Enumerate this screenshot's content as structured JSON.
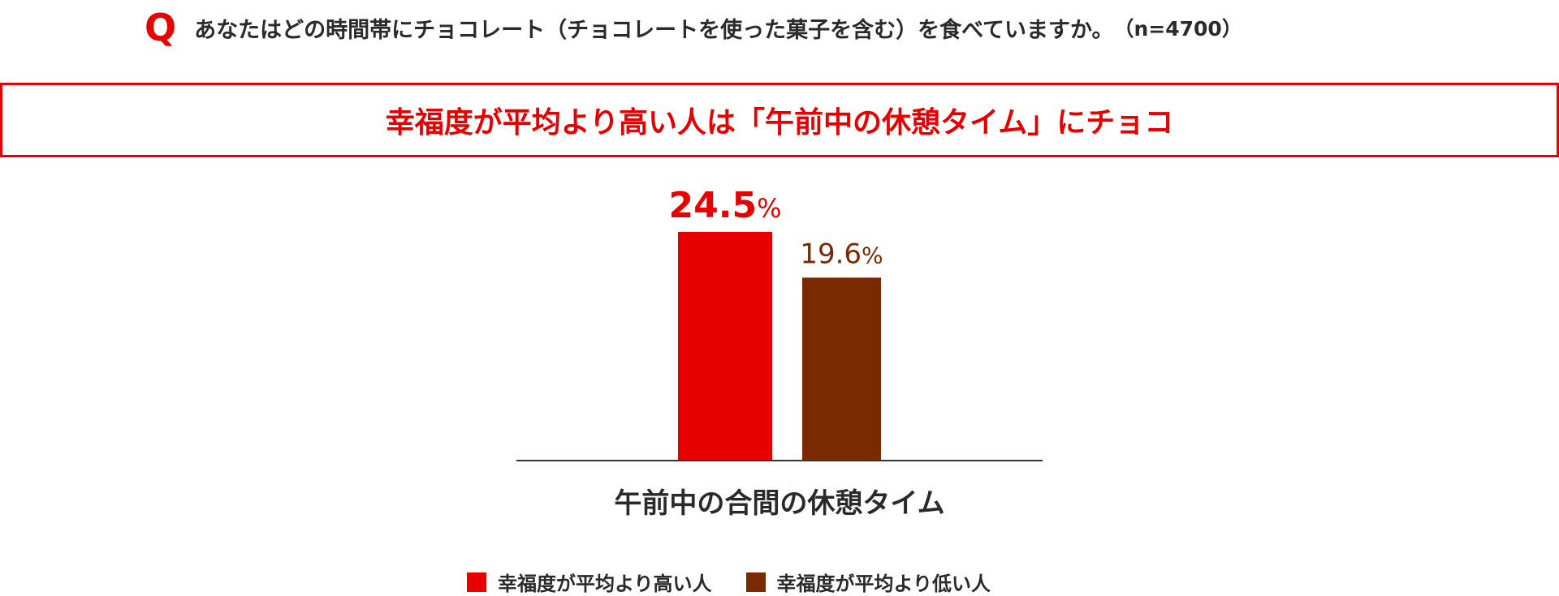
{
  "question": {
    "mark": "Q",
    "text": "あなたはどの時間帯にチョコレート（チョコレートを使った菓子を含む）を食べていますか。",
    "sample": "（n=4700）"
  },
  "headline": "幸福度が平均より高い人は「午前中の休憩タイム」にチョコ",
  "colors": {
    "accent": "#e60000",
    "brown": "#7a2a00",
    "axis": "#333333"
  },
  "chart_data": {
    "type": "bar",
    "categories": [
      "午前中の合間の休憩タイム"
    ],
    "series": [
      {
        "name": "幸福度が平均より高い人",
        "values": [
          24.5
        ],
        "color": "#e60000",
        "label": "24.5",
        "unit": "%"
      },
      {
        "name": "幸福度が平均より低い人",
        "values": [
          19.6
        ],
        "color": "#7a2a00",
        "label": "19.6",
        "unit": "%"
      }
    ],
    "ylim": [
      0,
      24.5
    ],
    "grid": false,
    "legend": "bottom"
  }
}
